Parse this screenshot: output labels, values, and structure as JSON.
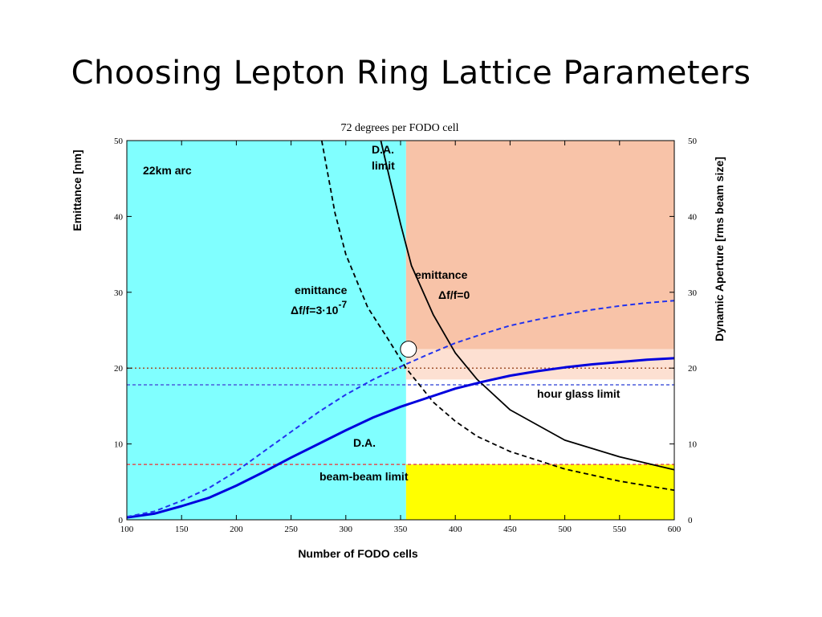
{
  "slide": {
    "title": "Choosing Lepton Ring Lattice Parameters"
  },
  "chart_data": {
    "type": "line",
    "title": "72 degrees per FODO cell",
    "xlabel": "Number of FODO cells",
    "ylabel_left": "Emittance [nm]",
    "ylabel_right": "Dynamic Aperture [rms beam size]",
    "xlim": [
      100,
      600
    ],
    "ylim_left": [
      0,
      50
    ],
    "ylim_right": [
      0,
      50
    ],
    "x_ticks": [
      100,
      150,
      200,
      250,
      300,
      350,
      400,
      450,
      500,
      550,
      600
    ],
    "y_ticks_left": [
      0,
      10,
      20,
      30,
      40,
      50
    ],
    "y_ticks_right": [
      0,
      10,
      20,
      30,
      40,
      50
    ],
    "regions": [
      {
        "x": [
          100,
          355
        ],
        "y": [
          0,
          50
        ],
        "color": "#80ffff"
      },
      {
        "x": [
          355,
          600
        ],
        "y": [
          22.5,
          50
        ],
        "color": "#f8c3a8"
      },
      {
        "x": [
          355,
          600
        ],
        "y": [
          18.5,
          22.5
        ],
        "color": "#fde0d2"
      },
      {
        "x": [
          355,
          600
        ],
        "y": [
          0,
          7.3
        ],
        "color": "#ffff00"
      }
    ],
    "hlines": [
      {
        "y": 20,
        "color": "#a0522d",
        "style": "dotted"
      },
      {
        "y": 17.8,
        "color": "#4b5bdc",
        "style": "dashed"
      },
      {
        "y": 7.3,
        "color": "#e05050",
        "style": "dashed"
      }
    ],
    "series": [
      {
        "label_lines": [
          "emittance",
          "Δf/f=0"
        ],
        "color": "#000000",
        "style": "solid",
        "width": 1.8,
        "points": [
          [
            332,
            50
          ],
          [
            340,
            45
          ],
          [
            350,
            39
          ],
          [
            360,
            33.5
          ],
          [
            380,
            27
          ],
          [
            400,
            22
          ],
          [
            420,
            18.5
          ],
          [
            450,
            14.5
          ],
          [
            500,
            10.5
          ],
          [
            550,
            8.3
          ],
          [
            600,
            6.6
          ]
        ]
      },
      {
        "label_lines": [
          "emittance",
          "Δf/f=3·10-7"
        ],
        "color": "#000000",
        "style": "dashed",
        "width": 1.8,
        "points": [
          [
            278,
            50
          ],
          [
            290,
            40.5
          ],
          [
            300,
            35
          ],
          [
            320,
            28
          ],
          [
            340,
            23.5
          ],
          [
            355,
            20
          ],
          [
            380,
            15.5
          ],
          [
            400,
            13
          ],
          [
            420,
            11
          ],
          [
            450,
            9
          ],
          [
            500,
            6.7
          ],
          [
            550,
            5.1
          ],
          [
            600,
            3.9
          ]
        ]
      },
      {
        "label_lines": [
          "D.A."
        ],
        "color": "#0000dd",
        "style": "solid",
        "width": 3,
        "points": [
          [
            100,
            0.3
          ],
          [
            125,
            0.8
          ],
          [
            150,
            1.8
          ],
          [
            175,
            2.9
          ],
          [
            200,
            4.5
          ],
          [
            225,
            6.3
          ],
          [
            250,
            8.2
          ],
          [
            275,
            10.0
          ],
          [
            300,
            11.8
          ],
          [
            325,
            13.5
          ],
          [
            350,
            14.9
          ],
          [
            375,
            16.1
          ],
          [
            400,
            17.3
          ],
          [
            425,
            18.2
          ],
          [
            450,
            19.0
          ],
          [
            475,
            19.6
          ],
          [
            500,
            20.1
          ],
          [
            525,
            20.5
          ],
          [
            550,
            20.8
          ],
          [
            575,
            21.1
          ],
          [
            600,
            21.3
          ]
        ]
      },
      {
        "label_lines": [],
        "color": "#2233ee",
        "style": "dashed",
        "width": 2,
        "points": [
          [
            100,
            0.4
          ],
          [
            125,
            1.1
          ],
          [
            150,
            2.5
          ],
          [
            175,
            4.2
          ],
          [
            200,
            6.4
          ],
          [
            225,
            9.0
          ],
          [
            250,
            11.6
          ],
          [
            275,
            14.2
          ],
          [
            300,
            16.5
          ],
          [
            325,
            18.5
          ],
          [
            350,
            20.2
          ],
          [
            375,
            21.8
          ],
          [
            400,
            23.3
          ],
          [
            425,
            24.5
          ],
          [
            450,
            25.6
          ],
          [
            475,
            26.4
          ],
          [
            500,
            27.1
          ],
          [
            525,
            27.7
          ],
          [
            550,
            28.2
          ],
          [
            575,
            28.6
          ],
          [
            600,
            28.9
          ]
        ]
      }
    ],
    "marker": {
      "x": 355,
      "y": 22.5
    },
    "annotations": {
      "arc": "22km arc",
      "da_limit_line1": "D.A.",
      "da_limit_line2": "limit",
      "hour_glass": "hour glass limit",
      "beam_beam": "beam-beam limit",
      "da_curve": "D.A.",
      "emit0_line1": "emittance",
      "emit0_line2": "Δf/f=0",
      "emit3_line1": "emittance",
      "emit3_line2_main": "Δf/f=3·10",
      "emit3_line2_exp": "-7"
    }
  }
}
